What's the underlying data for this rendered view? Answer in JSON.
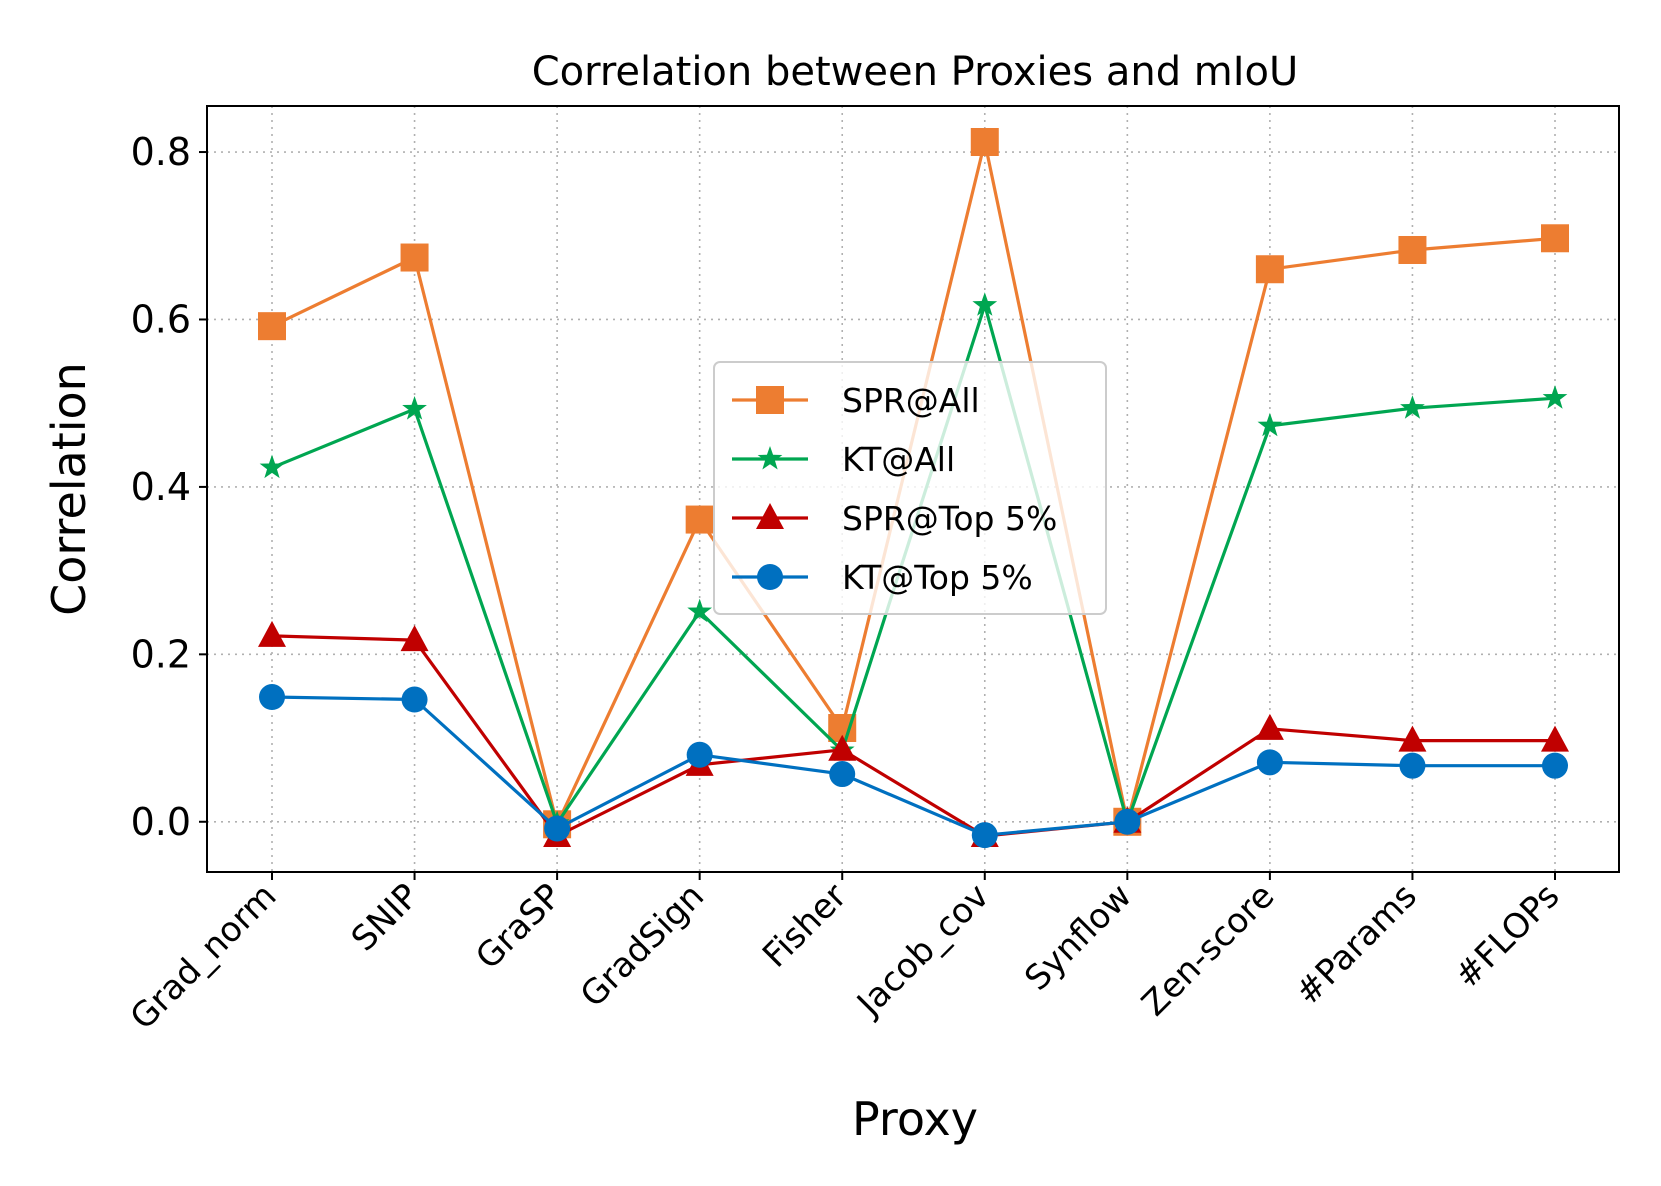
{
  "chart_data": {
    "type": "line",
    "title": "Correlation between Proxies and mIoU",
    "xlabel": "Proxy",
    "ylabel": "Correlation",
    "categories": [
      "Grad_norm",
      "SNIP",
      "GraSP",
      "GradSign",
      "Fisher",
      "Jacob_cov",
      "Synflow",
      "Zen-score",
      "#Params",
      "#FLOPs"
    ],
    "ylim": [
      -0.06,
      0.855
    ],
    "yticks": [
      "0.0",
      "0.2",
      "0.4",
      "0.6",
      "0.8"
    ],
    "grid": true,
    "legend_position": "center",
    "series": [
      {
        "name": "SPR@All",
        "color": "#ED7D31",
        "marker": "square",
        "values": [
          0.592,
          0.674,
          -0.003,
          0.361,
          0.112,
          0.812,
          0.0,
          0.66,
          0.683,
          0.697
        ]
      },
      {
        "name": "KT@All",
        "color": "#00A651",
        "marker": "star",
        "values": [
          0.423,
          0.493,
          -0.002,
          0.251,
          0.085,
          0.617,
          0.0,
          0.473,
          0.494,
          0.506
        ]
      },
      {
        "name": "SPR@Top 5%",
        "color": "#C00000",
        "marker": "triangle",
        "values": [
          0.222,
          0.217,
          -0.017,
          0.068,
          0.086,
          -0.017,
          0.0,
          0.111,
          0.097,
          0.097
        ]
      },
      {
        "name": "KT@Top 5%",
        "color": "#0070C0",
        "marker": "circle",
        "values": [
          0.149,
          0.146,
          -0.008,
          0.08,
          0.057,
          -0.016,
          0.0,
          0.071,
          0.067,
          0.067
        ]
      }
    ]
  }
}
